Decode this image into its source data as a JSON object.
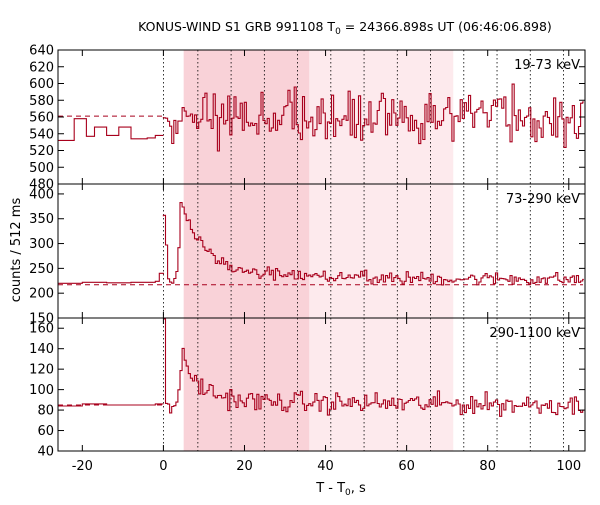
{
  "chart_data": {
    "type": "line",
    "title": "KONUS-WIND S1 GRB 991108 T",
    "title_sub": "0",
    "title_rest": " = 24366.898s UT (06:46:06.898)",
    "xlabel": "T - T",
    "xlabel_sub": "0",
    "xlabel_rest": ", s",
    "ylabel": "counts / 512 ms",
    "xlim": [
      -26,
      104
    ],
    "xticks": [
      -20,
      0,
      20,
      40,
      60,
      80,
      100
    ],
    "xtick_labels": [
      "-20",
      "0",
      "20",
      "40",
      "60",
      "80",
      "100"
    ],
    "colors": {
      "line": "#a8001c",
      "shade_dark": "#f9d2d8",
      "shade_light": "#fdeaed",
      "frame": "#000000",
      "grid": "#000000"
    },
    "shaded_regions": [
      {
        "from": 5,
        "to": 36,
        "tone": "dark"
      },
      {
        "from": 36,
        "to": 71.5,
        "tone": "light"
      }
    ],
    "vertical_dotted_lines": [
      0,
      8.5,
      16.7,
      24.9,
      33.1,
      41.3,
      49.5,
      57.7,
      65.9,
      74.1,
      82.3,
      90.5,
      98.7
    ],
    "panels": [
      {
        "band": "19-73 keV",
        "ylim": [
          480,
          640
        ],
        "yticks": [
          480,
          500,
          520,
          540,
          560,
          580,
          600,
          620,
          640
        ],
        "ytick_labels": [
          "480",
          "500",
          "520",
          "540",
          "560",
          "580",
          "600",
          "620",
          "640"
        ],
        "background": 561,
        "background_until": 0,
        "pre_burst": [
          [
            -26,
            532
          ],
          [
            -22,
            558
          ],
          [
            -19,
            537
          ],
          [
            -17,
            548
          ],
          [
            -14,
            538
          ],
          [
            -11,
            548
          ],
          [
            -8,
            534
          ],
          [
            -4,
            535
          ],
          [
            -2,
            538
          ],
          [
            0,
            538
          ]
        ],
        "trend": [
          [
            0,
            560
          ],
          [
            20,
            560
          ],
          [
            40,
            560
          ],
          [
            60,
            560
          ],
          [
            80,
            560
          ],
          [
            103.5,
            560
          ]
        ],
        "noise_amplitude": 30
      },
      {
        "band": "73-290 keV",
        "ylim": [
          150,
          420
        ],
        "yticks": [
          150,
          200,
          250,
          300,
          350,
          400
        ],
        "ytick_labels": [
          "150",
          "200",
          "250",
          "300",
          "350",
          "400"
        ],
        "background": 217,
        "background_until": 103.5,
        "pre_burst": [
          [
            -26,
            220
          ],
          [
            -20,
            222
          ],
          [
            -14,
            221
          ],
          [
            -8,
            222
          ],
          [
            -2,
            224
          ],
          [
            -1,
            240
          ],
          [
            0,
            238
          ]
        ],
        "trend": [
          [
            0,
            355
          ],
          [
            0.5,
            300
          ],
          [
            1,
            235
          ],
          [
            2,
            220
          ],
          [
            3.5,
            260
          ],
          [
            4,
            380
          ],
          [
            4.5,
            395
          ],
          [
            5,
            355
          ],
          [
            6,
            345
          ],
          [
            7,
            320
          ],
          [
            9,
            300
          ],
          [
            11,
            285
          ],
          [
            14,
            260
          ],
          [
            18,
            248
          ],
          [
            24,
            240
          ],
          [
            32,
            235
          ],
          [
            45,
            232
          ],
          [
            60,
            230
          ],
          [
            80,
            229
          ],
          [
            103.5,
            228
          ]
        ],
        "noise_amplitude": 13
      },
      {
        "band": "290-1100 keV",
        "ylim": [
          40,
          170
        ],
        "yticks": [
          40,
          60,
          80,
          100,
          120,
          140,
          160
        ],
        "ytick_labels": [
          "40",
          "60",
          "80",
          "100",
          "120",
          "140",
          "160"
        ],
        "background": 85,
        "background_until": 0,
        "pre_burst": [
          [
            -26,
            84
          ],
          [
            -20,
            86
          ],
          [
            -14,
            85
          ],
          [
            -8,
            85
          ],
          [
            -2,
            86
          ],
          [
            0,
            86
          ]
        ],
        "trend": [
          [
            0,
            170
          ],
          [
            0.5,
            90
          ],
          [
            1.5,
            80
          ],
          [
            3,
            85
          ],
          [
            4,
            120
          ],
          [
            4.5,
            145
          ],
          [
            5,
            120
          ],
          [
            6,
            115
          ],
          [
            8,
            108
          ],
          [
            10,
            100
          ],
          [
            13,
            95
          ],
          [
            18,
            90
          ],
          [
            25,
            88
          ],
          [
            40,
            87
          ],
          [
            70,
            86
          ],
          [
            103.5,
            85
          ]
        ],
        "noise_amplitude": 10
      }
    ]
  }
}
